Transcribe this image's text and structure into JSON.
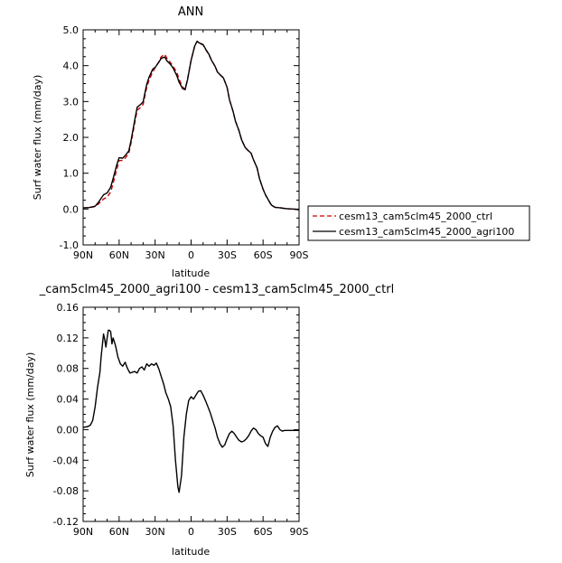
{
  "top": {
    "title": "ANN",
    "xlabel": "latitude",
    "ylabel": "Surf water flux (mm/day)"
  },
  "bottom": {
    "title": "_cam5clm45_2000_agri100 - cesm13_cam5clm45_2000_ctrl",
    "xlabel": "latitude",
    "ylabel": "Surf water flux (mm/day)"
  },
  "legend": {
    "items": [
      {
        "label": "cesm13_cam5clm45_2000_ctrl",
        "color": "#cc0000",
        "dash": "dashed"
      },
      {
        "label": "cesm13_cam5clm45_2000_agri100",
        "color": "#000000",
        "dash": "solid"
      }
    ],
    "placement": "right"
  },
  "chart_data": [
    {
      "type": "line",
      "title": "ANN",
      "xlabel": "latitude",
      "ylabel": "Surf water flux (mm/day)",
      "xlim": [
        90,
        -90
      ],
      "ylim": [
        -1.0,
        5.0
      ],
      "xticks": [
        90,
        60,
        30,
        0,
        -30,
        -60,
        -90
      ],
      "xtick_labels": [
        "90N",
        "60N",
        "30N",
        "0",
        "30S",
        "60S",
        "90S"
      ],
      "yticks": [
        -1.0,
        0.0,
        1.0,
        2.0,
        3.0,
        4.0,
        5.0
      ],
      "ytick_labels": [
        "-1.0",
        "0.0",
        "1.0",
        "2.0",
        "3.0",
        "4.0",
        "5.0"
      ],
      "x": [
        90,
        85,
        80,
        77,
        73,
        70,
        67,
        65,
        62,
        60,
        57,
        55,
        52,
        50,
        47,
        45,
        42,
        40,
        37,
        35,
        32,
        30,
        27,
        25,
        22,
        20,
        17,
        15,
        12,
        10,
        7,
        5,
        3,
        0,
        -3,
        -5,
        -7,
        -10,
        -12,
        -15,
        -17,
        -20,
        -22,
        -25,
        -27,
        -30,
        -32,
        -35,
        -37,
        -40,
        -42,
        -45,
        -47,
        -50,
        -52,
        -55,
        -57,
        -60,
        -62,
        -65,
        -67,
        -70,
        -72,
        -75,
        -77,
        -80,
        -85,
        -90
      ],
      "series": [
        {
          "name": "cesm13_cam5clm45_2000_ctrl",
          "color": "#cc0000",
          "dash": "dashed",
          "values": [
            0.03,
            0.04,
            0.07,
            0.15,
            0.28,
            0.33,
            0.48,
            0.72,
            1.1,
            1.35,
            1.36,
            1.42,
            1.55,
            1.85,
            2.4,
            2.76,
            2.84,
            2.92,
            3.4,
            3.6,
            3.82,
            3.94,
            4.1,
            4.24,
            4.32,
            4.2,
            4.08,
            3.98,
            3.82,
            3.62,
            3.4,
            3.35,
            3.62,
            4.15,
            4.55,
            4.68,
            4.62,
            4.58,
            4.46,
            4.3,
            4.15,
            3.98,
            3.82,
            3.72,
            3.66,
            3.4,
            3.05,
            2.72,
            2.45,
            2.18,
            1.94,
            1.72,
            1.65,
            1.56,
            1.38,
            1.15,
            0.85,
            0.55,
            0.4,
            0.22,
            0.1,
            0.05,
            0.04,
            0.03,
            0.02,
            0.01,
            0.0,
            -0.02
          ]
        },
        {
          "name": "cesm13_cam5clm45_2000_agri100",
          "color": "#000000",
          "dash": "solid",
          "values": [
            0.03,
            0.04,
            0.08,
            0.2,
            0.4,
            0.45,
            0.61,
            0.85,
            1.23,
            1.43,
            1.42,
            1.49,
            1.62,
            1.92,
            2.48,
            2.84,
            2.92,
            2.99,
            3.48,
            3.68,
            3.9,
            3.95,
            4.09,
            4.2,
            4.24,
            4.13,
            4.03,
            3.93,
            3.73,
            3.54,
            3.36,
            3.33,
            3.6,
            4.15,
            4.55,
            4.68,
            4.63,
            4.59,
            4.47,
            4.31,
            4.15,
            3.98,
            3.82,
            3.72,
            3.66,
            3.4,
            3.05,
            2.72,
            2.45,
            2.18,
            1.94,
            1.72,
            1.65,
            1.56,
            1.38,
            1.15,
            0.85,
            0.55,
            0.4,
            0.22,
            0.11,
            0.05,
            0.04,
            0.03,
            0.02,
            0.01,
            0.0,
            -0.02
          ]
        }
      ]
    },
    {
      "type": "line",
      "title": "_cam5clm45_2000_agri100 - cesm13_cam5clm45_2000_ctrl",
      "xlabel": "latitude",
      "ylabel": "Surf water flux (mm/day)",
      "xlim": [
        90,
        -90
      ],
      "ylim": [
        -0.12,
        0.16
      ],
      "xticks": [
        90,
        60,
        30,
        0,
        -30,
        -60,
        -90
      ],
      "xtick_labels": [
        "90N",
        "60N",
        "30N",
        "0",
        "30S",
        "60S",
        "90S"
      ],
      "yticks": [
        -0.12,
        -0.08,
        -0.04,
        0.0,
        0.04,
        0.08,
        0.12,
        0.16
      ],
      "ytick_labels": [
        "-0.12",
        "-0.08",
        "-0.04",
        "0.00",
        "0.04",
        "0.08",
        "0.12",
        "0.16"
      ],
      "x": [
        90,
        86,
        84,
        82,
        80,
        78,
        76,
        75,
        73,
        72,
        71,
        70,
        69,
        68,
        67,
        66,
        65,
        63,
        61,
        59,
        57,
        55,
        53,
        51,
        49,
        47,
        45,
        43,
        41,
        39,
        37,
        35,
        33,
        31,
        29,
        27,
        25,
        23,
        21,
        19,
        17,
        15,
        13,
        11,
        10,
        8,
        6,
        4,
        2,
        0,
        -2,
        -4,
        -6,
        -8,
        -10,
        -12,
        -14,
        -16,
        -18,
        -20,
        -22,
        -24,
        -26,
        -28,
        -30,
        -32,
        -34,
        -36,
        -38,
        -40,
        -42,
        -44,
        -46,
        -48,
        -50,
        -52,
        -54,
        -56,
        -58,
        -60,
        -62,
        -64,
        -66,
        -68,
        -70,
        -72,
        -74,
        -76,
        -78,
        -80,
        -82,
        -84,
        -86,
        -88,
        -90
      ],
      "series": [
        {
          "name": "",
          "color": "#000000",
          "dash": "solid",
          "values": [
            0.003,
            0.004,
            0.006,
            0.012,
            0.03,
            0.055,
            0.075,
            0.095,
            0.125,
            0.118,
            0.108,
            0.12,
            0.13,
            0.13,
            0.128,
            0.112,
            0.12,
            0.11,
            0.095,
            0.086,
            0.083,
            0.088,
            0.08,
            0.074,
            0.075,
            0.076,
            0.074,
            0.08,
            0.082,
            0.078,
            0.086,
            0.083,
            0.086,
            0.084,
            0.087,
            0.08,
            0.07,
            0.06,
            0.048,
            0.04,
            0.03,
            0.005,
            -0.04,
            -0.075,
            -0.082,
            -0.06,
            -0.01,
            0.02,
            0.038,
            0.043,
            0.04,
            0.045,
            0.05,
            0.051,
            0.045,
            0.038,
            0.03,
            0.022,
            0.012,
            0.002,
            -0.01,
            -0.018,
            -0.023,
            -0.02,
            -0.012,
            -0.005,
            -0.002,
            -0.005,
            -0.01,
            -0.014,
            -0.016,
            -0.015,
            -0.012,
            -0.008,
            -0.002,
            0.002,
            0.0,
            -0.005,
            -0.008,
            -0.01,
            -0.018,
            -0.022,
            -0.01,
            -0.002,
            0.003,
            0.005,
            0.0,
            -0.002,
            -0.001,
            -0.001,
            -0.001,
            -0.001,
            -0.001,
            -0.001,
            -0.001
          ]
        }
      ]
    }
  ]
}
